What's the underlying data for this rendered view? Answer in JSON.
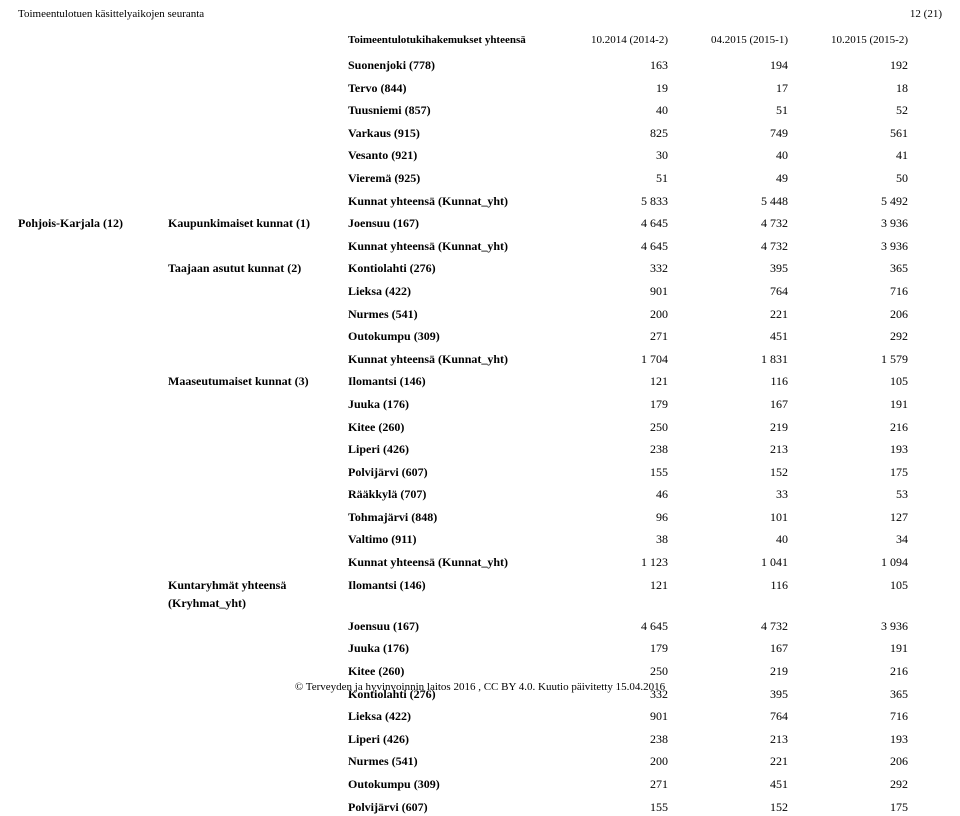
{
  "page": {
    "header_left": "Toimeentulotuen käsittelyaikojen seuranta",
    "header_right": "12 (21)",
    "title": "Toimeentulotukihakemukset yhteensä",
    "columns": [
      "10.2014 (2014-2)",
      "04.2015 (2015-1)",
      "10.2015 (2015-2)"
    ],
    "footer": "© Terveyden ja hyvinvoinnin laitos 2016 , CC BY 4.0. Kuutio päivitetty 15.04.2016"
  },
  "rows": [
    {
      "group": "",
      "subgroup": "",
      "label": "Suonenjoki (778)",
      "v": [
        "163",
        "194",
        "192"
      ]
    },
    {
      "group": "",
      "subgroup": "",
      "label": "Tervo (844)",
      "v": [
        "19",
        "17",
        "18"
      ]
    },
    {
      "group": "",
      "subgroup": "",
      "label": "Tuusniemi (857)",
      "v": [
        "40",
        "51",
        "52"
      ]
    },
    {
      "group": "",
      "subgroup": "",
      "label": "Varkaus (915)",
      "v": [
        "825",
        "749",
        "561"
      ]
    },
    {
      "group": "",
      "subgroup": "",
      "label": "Vesanto (921)",
      "v": [
        "30",
        "40",
        "41"
      ]
    },
    {
      "group": "",
      "subgroup": "",
      "label": "Vieremä (925)",
      "v": [
        "51",
        "49",
        "50"
      ]
    },
    {
      "group": "",
      "subgroup": "",
      "label": "Kunnat yhteensä (Kunnat_yht)",
      "v": [
        "5 833",
        "5 448",
        "5 492"
      ]
    },
    {
      "group": "Pohjois-Karjala (12)",
      "subgroup": "Kaupunkimaiset kunnat (1)",
      "label": "Joensuu (167)",
      "v": [
        "4 645",
        "4 732",
        "3 936"
      ]
    },
    {
      "group": "",
      "subgroup": "",
      "label": "Kunnat yhteensä (Kunnat_yht)",
      "v": [
        "4 645",
        "4 732",
        "3 936"
      ]
    },
    {
      "group": "",
      "subgroup": "Taajaan asutut kunnat (2)",
      "label": "Kontiolahti (276)",
      "v": [
        "332",
        "395",
        "365"
      ]
    },
    {
      "group": "",
      "subgroup": "",
      "label": "Lieksa (422)",
      "v": [
        "901",
        "764",
        "716"
      ]
    },
    {
      "group": "",
      "subgroup": "",
      "label": "Nurmes (541)",
      "v": [
        "200",
        "221",
        "206"
      ]
    },
    {
      "group": "",
      "subgroup": "",
      "label": "Outokumpu (309)",
      "v": [
        "271",
        "451",
        "292"
      ]
    },
    {
      "group": "",
      "subgroup": "",
      "label": "Kunnat yhteensä (Kunnat_yht)",
      "v": [
        "1 704",
        "1 831",
        "1 579"
      ]
    },
    {
      "group": "",
      "subgroup": "Maaseutumaiset kunnat (3)",
      "label": "Ilomantsi (146)",
      "v": [
        "121",
        "116",
        "105"
      ]
    },
    {
      "group": "",
      "subgroup": "",
      "label": "Juuka (176)",
      "v": [
        "179",
        "167",
        "191"
      ]
    },
    {
      "group": "",
      "subgroup": "",
      "label": "Kitee (260)",
      "v": [
        "250",
        "219",
        "216"
      ]
    },
    {
      "group": "",
      "subgroup": "",
      "label": "Liperi (426)",
      "v": [
        "238",
        "213",
        "193"
      ]
    },
    {
      "group": "",
      "subgroup": "",
      "label": "Polvijärvi (607)",
      "v": [
        "155",
        "152",
        "175"
      ]
    },
    {
      "group": "",
      "subgroup": "",
      "label": "Rääkkylä (707)",
      "v": [
        "46",
        "33",
        "53"
      ]
    },
    {
      "group": "",
      "subgroup": "",
      "label": "Tohmajärvi (848)",
      "v": [
        "96",
        "101",
        "127"
      ]
    },
    {
      "group": "",
      "subgroup": "",
      "label": "Valtimo (911)",
      "v": [
        "38",
        "40",
        "34"
      ]
    },
    {
      "group": "",
      "subgroup": "",
      "label": "Kunnat yhteensä (Kunnat_yht)",
      "v": [
        "1 123",
        "1 041",
        "1 094"
      ]
    },
    {
      "group": "",
      "subgroup": "Kuntaryhmät yhteensä (Kryhmat_yht)",
      "label": "Ilomantsi (146)",
      "v": [
        "121",
        "116",
        "105"
      ]
    },
    {
      "group": "",
      "subgroup": "",
      "label": "Joensuu (167)",
      "v": [
        "4 645",
        "4 732",
        "3 936"
      ]
    },
    {
      "group": "",
      "subgroup": "",
      "label": "Juuka (176)",
      "v": [
        "179",
        "167",
        "191"
      ]
    },
    {
      "group": "",
      "subgroup": "",
      "label": "Kitee (260)",
      "v": [
        "250",
        "219",
        "216"
      ]
    },
    {
      "group": "",
      "subgroup": "",
      "label": "Kontiolahti (276)",
      "v": [
        "332",
        "395",
        "365"
      ]
    },
    {
      "group": "",
      "subgroup": "",
      "label": "Lieksa (422)",
      "v": [
        "901",
        "764",
        "716"
      ]
    },
    {
      "group": "",
      "subgroup": "",
      "label": "Liperi (426)",
      "v": [
        "238",
        "213",
        "193"
      ]
    },
    {
      "group": "",
      "subgroup": "",
      "label": "Nurmes (541)",
      "v": [
        "200",
        "221",
        "206"
      ]
    },
    {
      "group": "",
      "subgroup": "",
      "label": "Outokumpu (309)",
      "v": [
        "271",
        "451",
        "292"
      ]
    },
    {
      "group": "",
      "subgroup": "",
      "label": "Polvijärvi (607)",
      "v": [
        "155",
        "152",
        "175"
      ]
    }
  ]
}
